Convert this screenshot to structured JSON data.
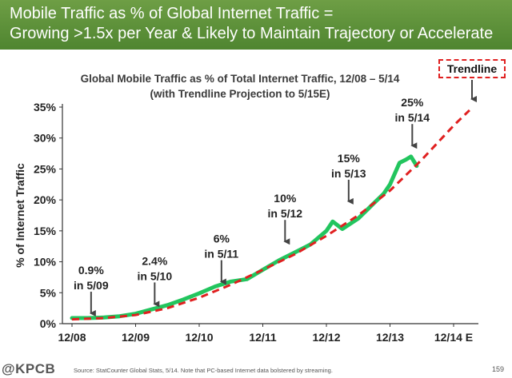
{
  "header": {
    "line1": "Mobile Traffic as % of Global Internet Traffic =",
    "line2": "Growing >1.5x per Year & Likely to Maintain Trajectory or Accelerate"
  },
  "trendline_label": "Trendline",
  "footer": {
    "logo": "@KPCB",
    "source": "Source: StatCounter Global Stats, 5/14. Note that PC-based Internet data bolstered by streaming.",
    "page": "159"
  },
  "colors": {
    "header_bg": "#5a8f38",
    "series": "#22c55e",
    "trendline": "#e02020",
    "annotation_arrow": "#444444"
  },
  "chart_data": {
    "type": "line",
    "title": "Global Mobile Traffic as % of Total Internet Traffic, 12/08 – 5/14",
    "subtitle": "(with Trendline Projection to 5/15E)",
    "xlabel": "",
    "ylabel": "% of Internet Traffic",
    "x_categories": [
      "12/08",
      "12/09",
      "12/10",
      "12/11",
      "12/12",
      "12/13",
      "12/14 E"
    ],
    "xlim": [
      0,
      6
    ],
    "ylim": [
      0,
      35
    ],
    "yticks": [
      "0%",
      "5%",
      "10%",
      "15%",
      "20%",
      "25%",
      "30%",
      "35%"
    ],
    "grid": false,
    "series": [
      {
        "name": "",
        "x": [
          0,
          0.25,
          0.5,
          0.75,
          1.0,
          1.25,
          1.5,
          1.75,
          2.0,
          2.25,
          2.5,
          2.75,
          3.0,
          3.25,
          3.5,
          3.75,
          4.0,
          4.1,
          4.25,
          4.5,
          4.65,
          4.75,
          4.9,
          5.0,
          5.15,
          5.25,
          5.33,
          5.42
        ],
        "y": [
          0.9,
          0.9,
          1.0,
          1.2,
          1.6,
          2.3,
          3.0,
          3.9,
          4.9,
          6.0,
          6.8,
          7.2,
          8.7,
          10.2,
          11.5,
          12.8,
          15.0,
          16.5,
          15.3,
          17.0,
          18.5,
          19.5,
          21.0,
          22.5,
          26.0,
          26.5,
          27.0,
          25.5
        ]
      },
      {
        "name": "Trendline",
        "x": [
          0,
          0.5,
          1.0,
          1.5,
          2.0,
          2.5,
          3.0,
          3.5,
          4.0,
          4.5,
          5.0,
          5.5,
          6.0,
          6.25
        ],
        "y": [
          0.7,
          0.9,
          1.4,
          2.5,
          4.2,
          6.3,
          8.7,
          11.2,
          14.2,
          17.5,
          21.5,
          26.5,
          32.0,
          34.5
        ]
      }
    ],
    "annotations": [
      {
        "text": "0.9%\nin 5/09",
        "x": 0.3,
        "y": 0.9
      },
      {
        "text": "2.4%\nin 5/10",
        "x": 1.3,
        "y": 2.4
      },
      {
        "text": "6%\nin 5/11",
        "x": 2.35,
        "y": 6
      },
      {
        "text": "10%\nin 5/12",
        "x": 3.35,
        "y": 12.5
      },
      {
        "text": "15%\nin 5/13",
        "x": 4.35,
        "y": 19.0
      },
      {
        "text": "25%\nin 5/14",
        "x": 5.35,
        "y": 28.0
      }
    ]
  }
}
